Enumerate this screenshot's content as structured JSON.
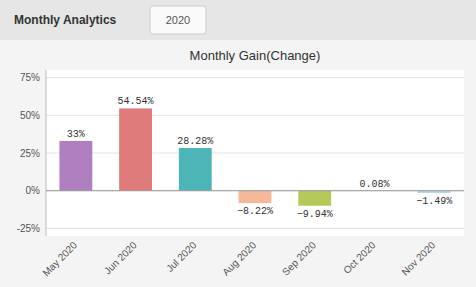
{
  "chart_data": {
    "type": "bar",
    "title": "Monthly Gain(Change)",
    "annotations": [
      "Monthly Analytics",
      "2020"
    ],
    "categories": [
      "May 2020",
      "Jun 2020",
      "Jul 2020",
      "Aug 2020",
      "Sep 2020",
      "Oct 2020",
      "Nov 2020"
    ],
    "values": [
      33.0,
      54.54,
      28.28,
      -8.22,
      -9.94,
      0.08,
      -1.49
    ],
    "value_labels": [
      "33%",
      "54.54%",
      "28.28%",
      "−8.22%",
      "−9.94%",
      "0.08%",
      "−1.49%"
    ],
    "data_labels": true,
    "colors": [
      "#b07fbf",
      "#e07b7b",
      "#4db5b5",
      "#f5b89a",
      "#b5c95a",
      "#d0e8d0",
      "#b0d8f0"
    ],
    "ylim": [
      -30,
      80
    ],
    "yticks": [
      {
        "value": -25,
        "label": "-25%"
      },
      {
        "value": 0,
        "label": "0%"
      },
      {
        "value": 25,
        "label": "25%"
      },
      {
        "value": 50,
        "label": "50%"
      },
      {
        "value": 75,
        "label": "75%"
      }
    ],
    "grid": true
  }
}
